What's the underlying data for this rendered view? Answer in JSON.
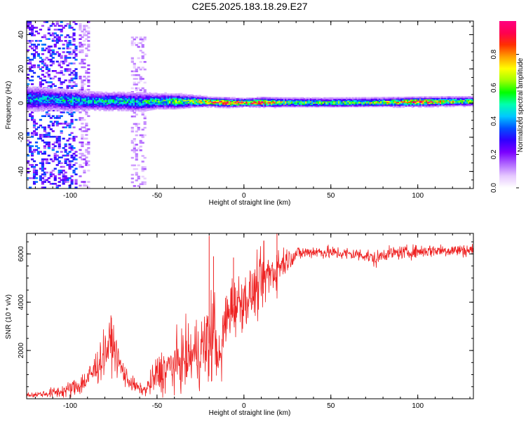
{
  "title": "C2E5.2025.183.18.29.E27",
  "chart_data": [
    {
      "type": "heatmap",
      "xlabel": "Height of straight line (km)",
      "ylabel": "Frequency (Hz)",
      "xlim": [
        -125,
        132
      ],
      "ylim": [
        -50,
        48
      ],
      "xticks": [
        -100,
        -50,
        0,
        50,
        100
      ],
      "yticks": [
        -40,
        -20,
        0,
        20,
        40
      ],
      "grid": false,
      "colorbar": {
        "label": "Normalized spectral amplitude",
        "range": [
          0,
          1
        ],
        "ticks": [
          0.0,
          0.2,
          0.4,
          0.6,
          0.8
        ],
        "colormap": [
          "#ffffff",
          "#e6c8ff",
          "#b066ff",
          "#7a00ff",
          "#3000ff",
          "#0050ff",
          "#00c8ff",
          "#00ffb0",
          "#00ff00",
          "#a0ff00",
          "#ffff00",
          "#ffa000",
          "#ff3000",
          "#ff0050",
          "#ff0080"
        ]
      },
      "band_profile": {
        "x": [
          -120,
          -110,
          -100,
          -90,
          -80,
          -70,
          -60,
          -50,
          -40,
          -30,
          -20,
          -10,
          0,
          10,
          20,
          30,
          50,
          80,
          100,
          120,
          132
        ],
        "center_hz": [
          3,
          2.5,
          2,
          1.8,
          1.5,
          1.5,
          1.2,
          1.5,
          1.5,
          1.5,
          1.2,
          0.8,
          0.8,
          1,
          0.8,
          0.8,
          0.8,
          1,
          1.2,
          1.5,
          1.5
        ],
        "half_width_hz": [
          8,
          7,
          7,
          6,
          6,
          6,
          6,
          5,
          5,
          4,
          3,
          3,
          2.5,
          3,
          3,
          3,
          3,
          3,
          3,
          3,
          3
        ],
        "peak_amplitude": [
          0.35,
          0.35,
          0.4,
          0.38,
          0.4,
          0.4,
          0.42,
          0.45,
          0.5,
          0.55,
          0.7,
          0.85,
          0.8,
          0.85,
          0.6,
          0.5,
          0.5,
          0.55,
          0.8,
          0.6,
          0.55
        ]
      },
      "noise_clusters": [
        {
          "x_range": [
            -125,
            -97
          ],
          "f_range": [
            -50,
            48
          ],
          "amplitude": 0.3
        },
        {
          "x_range": [
            -95,
            -90
          ],
          "f_range": [
            -50,
            48
          ],
          "amplitude": 0.15
        },
        {
          "x_range": [
            -65,
            -57
          ],
          "f_range": [
            -48,
            40
          ],
          "amplitude": 0.12
        }
      ]
    },
    {
      "type": "line",
      "xlabel": "Height of straight line (km)",
      "ylabel": "SNR (10 * v/v)",
      "xlim": [
        -125,
        132
      ],
      "ylim": [
        0,
        6850
      ],
      "xticks": [
        -100,
        -50,
        0,
        50,
        100
      ],
      "yticks": [
        2000,
        4000,
        6000
      ],
      "grid": false,
      "series": [
        {
          "color": "#ee2222",
          "x": [
            -125,
            -115,
            -105,
            -100,
            -95,
            -90,
            -85,
            -80,
            -77,
            -75,
            -72,
            -68,
            -64,
            -60,
            -57,
            -55,
            -52,
            -50,
            -45,
            -40,
            -35,
            -30,
            -25,
            -22,
            -20,
            -19,
            -17,
            -15,
            -13,
            -12,
            -10,
            -8,
            -5,
            -3,
            0,
            3,
            5,
            8,
            10,
            12,
            15,
            18,
            20,
            23,
            26,
            30,
            35,
            40,
            50,
            60,
            70,
            76,
            80,
            90,
            100,
            110,
            120,
            132
          ],
          "y": [
            150,
            200,
            300,
            400,
            550,
            800,
            1300,
            1900,
            2300,
            2200,
            1500,
            900,
            600,
            400,
            350,
            500,
            800,
            1000,
            1200,
            1400,
            1600,
            1800,
            2000,
            2200,
            2300,
            2500,
            2800,
            1800,
            1500,
            2800,
            3200,
            3800,
            3900,
            4000,
            4100,
            4200,
            4400,
            4600,
            4800,
            5000,
            5200,
            5300,
            5500,
            5700,
            5800,
            6000,
            6050,
            6100,
            6050,
            6000,
            5950,
            5750,
            6000,
            6050,
            6100,
            6150,
            6150,
            6150
          ],
          "noise": [
            100,
            150,
            250,
            300,
            400,
            500,
            700,
            800,
            900,
            800,
            600,
            400,
            300,
            200,
            200,
            400,
            600,
            800,
            900,
            1000,
            1100,
            1200,
            1400,
            1600,
            1800,
            1800,
            1800,
            800,
            800,
            1400,
            1400,
            1200,
            1100,
            1100,
            1000,
            1000,
            1000,
            1100,
            1100,
            1100,
            1000,
            900,
            800,
            600,
            400,
            300,
            250,
            250,
            250,
            250,
            250,
            300,
            250,
            250,
            250,
            250,
            250,
            250
          ]
        }
      ],
      "spikes": [
        {
          "x": -20,
          "y": 6750
        },
        {
          "x": -17.5,
          "y": 5900
        },
        {
          "x": -76.5,
          "y": 3450
        },
        {
          "x": -6,
          "y": 5850
        },
        {
          "x": 11.5,
          "y": 6550
        },
        {
          "x": 19,
          "y": 6850
        }
      ]
    }
  ]
}
